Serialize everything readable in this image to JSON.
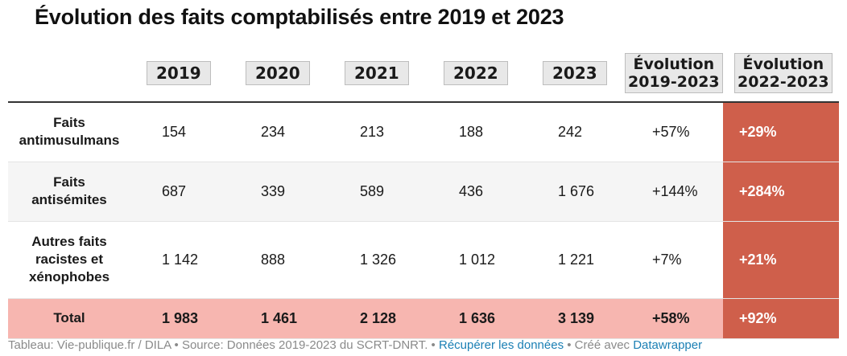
{
  "title": "Évolution des faits comptabilisés entre 2019 et 2023",
  "header": {
    "years": [
      "2019",
      "2020",
      "2021",
      "2022",
      "2023"
    ],
    "evol1": [
      "Évolution",
      "2019-2023"
    ],
    "evol2": [
      "Évolution",
      "2022-2023"
    ]
  },
  "rows": [
    {
      "label": [
        "Faits",
        "antimusulmans"
      ],
      "values": [
        "154",
        "234",
        "213",
        "188",
        "242"
      ],
      "evol1": "+57%",
      "evol2": "+29%"
    },
    {
      "label": [
        "Faits",
        "antisémites"
      ],
      "values": [
        "687",
        "339",
        "589",
        "436",
        "1 676"
      ],
      "evol1": "+144%",
      "evol2": "+284%"
    },
    {
      "label": [
        "Autres faits",
        "racistes et",
        "xénophobes"
      ],
      "values": [
        "1 142",
        "888",
        "1 326",
        "1 012",
        "1 221"
      ],
      "evol1": "+7%",
      "evol2": "+21%"
    },
    {
      "label": [
        "Total"
      ],
      "values": [
        "1 983",
        "1 461",
        "2 128",
        "1 636",
        "3 139"
      ],
      "evol1": "+58%",
      "evol2": "+92%"
    }
  ],
  "footer": {
    "part1": "Tableau: Vie-publique.fr / DILA • Source: Données 2019-2023 du SCRT-DNRT. • ",
    "link1": "Récupérer les données",
    "part2": " • Créé avec ",
    "link2": "Datawrapper"
  },
  "colors": {
    "highlight": "#cf5f4b",
    "total_row": "#f7b6b0",
    "link": "#1b7fb4"
  },
  "chart_data": {
    "type": "table",
    "title": "Évolution des faits comptabilisés entre 2019 et 2023",
    "columns": [
      "",
      "2019",
      "2020",
      "2021",
      "2022",
      "2023",
      "Évolution 2019-2023",
      "Évolution 2022-2023"
    ],
    "rows": [
      [
        "Faits antimusulmans",
        154,
        234,
        213,
        188,
        242,
        "+57%",
        "+29%"
      ],
      [
        "Faits antisémites",
        687,
        339,
        589,
        436,
        1676,
        "+144%",
        "+284%"
      ],
      [
        "Autres faits racistes et xénophobes",
        1142,
        888,
        1326,
        1012,
        1221,
        "+7%",
        "+21%"
      ],
      [
        "Total",
        1983,
        1461,
        2128,
        1636,
        3139,
        "+58%",
        "+92%"
      ]
    ]
  }
}
